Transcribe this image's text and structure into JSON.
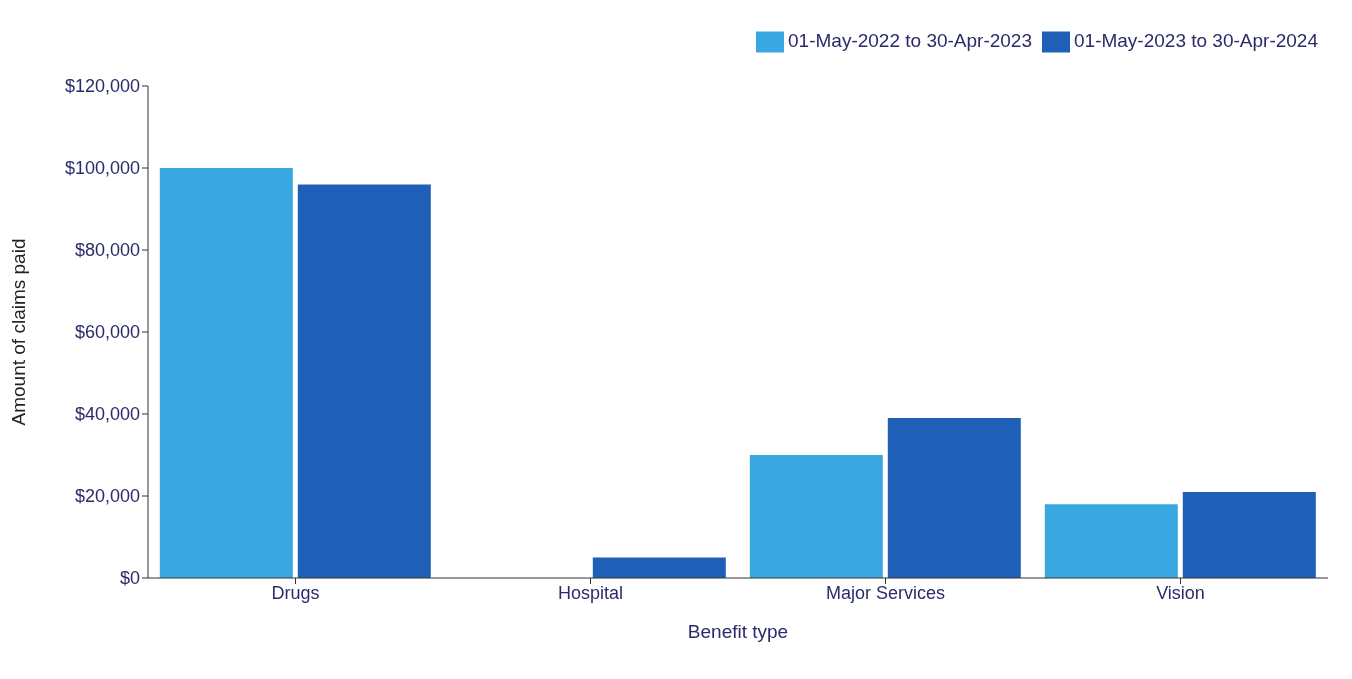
{
  "chart_data": {
    "type": "bar",
    "xlabel": "Benefit type",
    "ylabel": "Amount of claims paid",
    "categories": [
      "Drugs",
      "Hospital",
      "Major Services",
      "Vision"
    ],
    "series": [
      {
        "name": "01-May-2022 to 30-Apr-2023",
        "color": "#3aa8e0",
        "values": [
          100000,
          0,
          30000,
          18000
        ]
      },
      {
        "name": "01-May-2023 to 30-Apr-2024",
        "color": "#1f5fb8",
        "values": [
          96000,
          5000,
          39000,
          21000
        ]
      }
    ],
    "ylim": [
      0,
      120000
    ],
    "yticks": [
      {
        "value": 0,
        "label": "$0"
      },
      {
        "value": 20000,
        "label": "$20,000"
      },
      {
        "value": 40000,
        "label": "$40,000"
      },
      {
        "value": 60000,
        "label": "$60,000"
      },
      {
        "value": 80000,
        "label": "$80,000"
      },
      {
        "value": 100000,
        "label": "$100,000"
      },
      {
        "value": 120000,
        "label": "$120,000"
      }
    ],
    "legend": "top right",
    "grid": false
  }
}
